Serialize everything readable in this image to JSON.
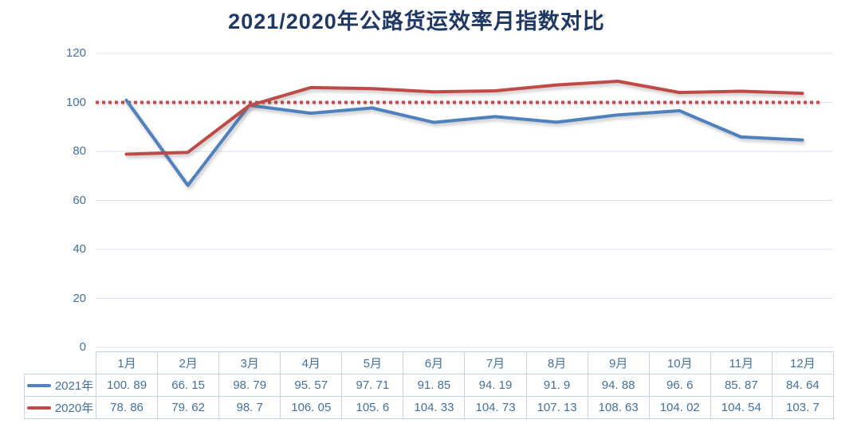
{
  "title": "2021/2020年公路货运效率月指数对比",
  "colors": {
    "title_text": "#1F3864",
    "axis_text": "#44719B",
    "table_text": "#44719B",
    "table_border": "#C3D4E8",
    "gridline": "#D9E2F1",
    "series_2021": "#4F81BD",
    "series_2020": "#BE4B48",
    "reference_line": "#BE4B48"
  },
  "chart_data": {
    "type": "line",
    "title": "2021/2020年公路货运效率月指数对比",
    "categories": [
      "1月",
      "2月",
      "3月",
      "4月",
      "5月",
      "6月",
      "7月",
      "8月",
      "9月",
      "10月",
      "11月",
      "12月"
    ],
    "series": [
      {
        "name": "2021年",
        "color": "#4F81BD",
        "values": [
          100.89,
          66.15,
          98.79,
          95.57,
          97.71,
          91.85,
          94.19,
          91.9,
          94.88,
          96.6,
          85.87,
          84.64
        ]
      },
      {
        "name": "2020年",
        "color": "#BE4B48",
        "values": [
          78.86,
          79.62,
          98.7,
          106.05,
          105.6,
          104.33,
          104.73,
          107.13,
          108.63,
          104.02,
          104.54,
          103.7
        ]
      }
    ],
    "reference_line": {
      "value": 100,
      "style": "dotted",
      "color": "#BE4B48"
    },
    "ylim": [
      0,
      120
    ],
    "y_ticks": [
      0,
      20,
      40,
      60,
      80,
      100,
      120
    ],
    "grid": "horizontal-only",
    "legend_position": "table-left"
  },
  "table": {
    "columns": [
      "1月",
      "2月",
      "3月",
      "4月",
      "5月",
      "6月",
      "7月",
      "8月",
      "9月",
      "10月",
      "11月",
      "12月"
    ],
    "rows": [
      {
        "label": "2021年",
        "display_values": [
          "100. 89",
          "66. 15",
          "98. 79",
          "95. 57",
          "97. 71",
          "91. 85",
          "94. 19",
          "91. 9",
          "94. 88",
          "96. 6",
          "85. 87",
          "84. 64"
        ]
      },
      {
        "label": "2020年",
        "display_values": [
          "78. 86",
          "79. 62",
          "98. 7",
          "106. 05",
          "105. 6",
          "104. 33",
          "104. 73",
          "107. 13",
          "108. 63",
          "104. 02",
          "104. 54",
          "103. 7"
        ]
      }
    ]
  }
}
